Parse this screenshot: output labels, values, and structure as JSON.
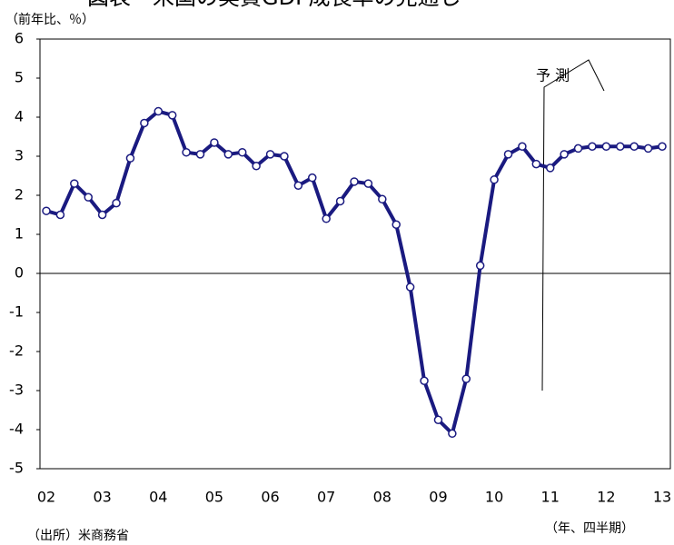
{
  "chart_data": {
    "type": "line",
    "title": "図表　米国の実質GDP成長率の見通し",
    "y_label": "（前年比、％）",
    "x_label": "（年、四半期）",
    "source": "（出所）米商務省",
    "annotation": "予 測",
    "categories": [
      "02",
      null,
      null,
      null,
      "03",
      null,
      null,
      null,
      "04",
      null,
      null,
      null,
      "05",
      null,
      null,
      null,
      "06",
      null,
      null,
      null,
      "07",
      null,
      null,
      null,
      "08",
      null,
      null,
      null,
      "09",
      null,
      null,
      null,
      "10",
      null,
      null,
      null,
      "11",
      null,
      null,
      null,
      "12",
      null,
      null,
      null,
      "13"
    ],
    "series": [
      {
        "color": "#1a1a80",
        "values": [
          1.6,
          1.5,
          2.3,
          1.95,
          1.5,
          1.8,
          2.95,
          3.85,
          4.15,
          4.05,
          3.1,
          3.05,
          3.35,
          3.05,
          3.1,
          2.75,
          3.05,
          3.0,
          2.25,
          2.45,
          1.4,
          1.85,
          2.35,
          2.3,
          1.9,
          1.25,
          -0.35,
          -2.75,
          -3.75,
          -4.1,
          -2.7,
          0.2,
          2.4,
          3.05,
          3.25,
          2.8,
          2.7,
          3.05,
          3.2,
          3.25,
          3.25,
          3.25,
          3.25,
          3.2,
          3.25
        ]
      }
    ],
    "ylim": [
      -5,
      6
    ],
    "yticks": [
      -5,
      -4,
      -3,
      -2,
      -1,
      0,
      1,
      2,
      3,
      4,
      5,
      6
    ]
  }
}
